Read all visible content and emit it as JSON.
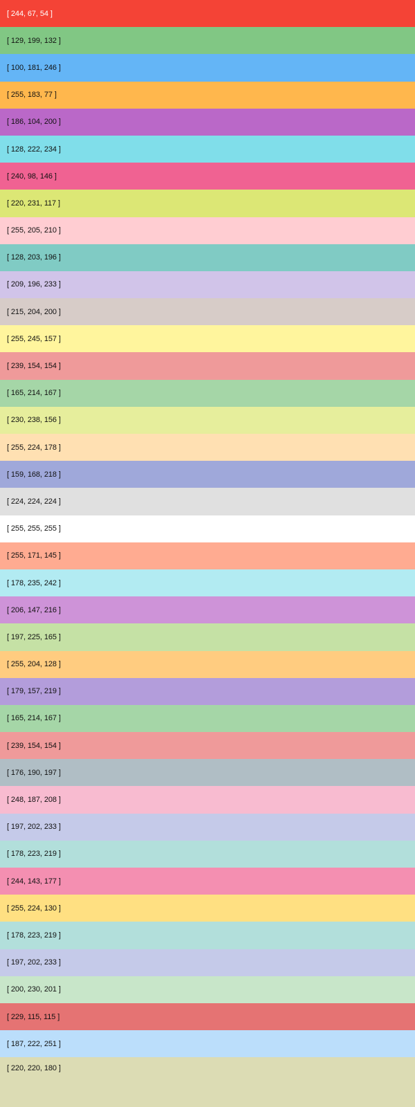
{
  "swatches": [
    {
      "label": "[ 244, 67, 54 ]",
      "rgb": [
        244,
        67,
        54
      ],
      "text_color": "#ffffff"
    },
    {
      "label": "[ 129, 199, 132 ]",
      "rgb": [
        129,
        199,
        132
      ],
      "text_color": "#111111"
    },
    {
      "label": "[ 100, 181, 246 ]",
      "rgb": [
        100,
        181,
        246
      ],
      "text_color": "#111111"
    },
    {
      "label": "[ 255, 183, 77 ]",
      "rgb": [
        255,
        183,
        77
      ],
      "text_color": "#111111"
    },
    {
      "label": "[ 186, 104, 200 ]",
      "rgb": [
        186,
        104,
        200
      ],
      "text_color": "#111111"
    },
    {
      "label": "[ 128, 222, 234 ]",
      "rgb": [
        128,
        222,
        234
      ],
      "text_color": "#111111"
    },
    {
      "label": "[ 240, 98, 146 ]",
      "rgb": [
        240,
        98,
        146
      ],
      "text_color": "#111111"
    },
    {
      "label": "[ 220, 231, 117 ]",
      "rgb": [
        220,
        231,
        117
      ],
      "text_color": "#111111"
    },
    {
      "label": "[ 255, 205, 210 ]",
      "rgb": [
        255,
        205,
        210
      ],
      "text_color": "#111111"
    },
    {
      "label": "[ 128, 203, 196 ]",
      "rgb": [
        128,
        203,
        196
      ],
      "text_color": "#111111"
    },
    {
      "label": "[ 209, 196, 233 ]",
      "rgb": [
        209,
        196,
        233
      ],
      "text_color": "#111111"
    },
    {
      "label": "[ 215, 204, 200 ]",
      "rgb": [
        215,
        204,
        200
      ],
      "text_color": "#111111"
    },
    {
      "label": "[ 255, 245, 157 ]",
      "rgb": [
        255,
        245,
        157
      ],
      "text_color": "#111111"
    },
    {
      "label": "[ 239, 154, 154 ]",
      "rgb": [
        239,
        154,
        154
      ],
      "text_color": "#111111"
    },
    {
      "label": "[ 165, 214, 167 ]",
      "rgb": [
        165,
        214,
        167
      ],
      "text_color": "#111111"
    },
    {
      "label": "[ 230, 238, 156 ]",
      "rgb": [
        230,
        238,
        156
      ],
      "text_color": "#111111"
    },
    {
      "label": "[ 255, 224, 178 ]",
      "rgb": [
        255,
        224,
        178
      ],
      "text_color": "#111111"
    },
    {
      "label": "[ 159, 168, 218 ]",
      "rgb": [
        159,
        168,
        218
      ],
      "text_color": "#111111"
    },
    {
      "label": "[ 224, 224, 224 ]",
      "rgb": [
        224,
        224,
        224
      ],
      "text_color": "#111111"
    },
    {
      "label": "[ 255, 255, 255 ]",
      "rgb": [
        255,
        255,
        255
      ],
      "text_color": "#111111"
    },
    {
      "label": "[ 255, 171, 145 ]",
      "rgb": [
        255,
        171,
        145
      ],
      "text_color": "#111111"
    },
    {
      "label": "[ 178, 235, 242 ]",
      "rgb": [
        178,
        235,
        242
      ],
      "text_color": "#111111"
    },
    {
      "label": "[ 206, 147, 216 ]",
      "rgb": [
        206,
        147,
        216
      ],
      "text_color": "#111111"
    },
    {
      "label": "[ 197, 225, 165 ]",
      "rgb": [
        197,
        225,
        165
      ],
      "text_color": "#111111"
    },
    {
      "label": "[ 255, 204, 128 ]",
      "rgb": [
        255,
        204,
        128
      ],
      "text_color": "#111111"
    },
    {
      "label": "[ 179, 157, 219 ]",
      "rgb": [
        179,
        157,
        219
      ],
      "text_color": "#111111"
    },
    {
      "label": "[ 165, 214, 167 ]",
      "rgb": [
        165,
        214,
        167
      ],
      "text_color": "#111111"
    },
    {
      "label": "[ 239, 154, 154 ]",
      "rgb": [
        239,
        154,
        154
      ],
      "text_color": "#111111"
    },
    {
      "label": "[ 176, 190, 197 ]",
      "rgb": [
        176,
        190,
        197
      ],
      "text_color": "#111111"
    },
    {
      "label": "[ 248, 187, 208 ]",
      "rgb": [
        248,
        187,
        208
      ],
      "text_color": "#111111"
    },
    {
      "label": "[ 197, 202, 233 ]",
      "rgb": [
        197,
        202,
        233
      ],
      "text_color": "#111111"
    },
    {
      "label": "[ 178, 223, 219 ]",
      "rgb": [
        178,
        223,
        219
      ],
      "text_color": "#111111"
    },
    {
      "label": "[ 244, 143, 177 ]",
      "rgb": [
        244,
        143,
        177
      ],
      "text_color": "#111111"
    },
    {
      "label": "[ 255, 224, 130 ]",
      "rgb": [
        255,
        224,
        130
      ],
      "text_color": "#111111"
    },
    {
      "label": "[ 178, 223, 219 ]",
      "rgb": [
        178,
        223,
        219
      ],
      "text_color": "#111111"
    },
    {
      "label": "[ 197, 202, 233 ]",
      "rgb": [
        197,
        202,
        233
      ],
      "text_color": "#111111"
    },
    {
      "label": "[ 200, 230, 201 ]",
      "rgb": [
        200,
        230,
        201
      ],
      "text_color": "#111111"
    },
    {
      "label": "[ 229, 115, 115 ]",
      "rgb": [
        229,
        115,
        115
      ],
      "text_color": "#111111"
    },
    {
      "label": "[ 187, 222, 251 ]",
      "rgb": [
        187,
        222,
        251
      ],
      "text_color": "#111111"
    },
    {
      "label": "[ 220, 220, 180 ]",
      "rgb": [
        220,
        220,
        180
      ],
      "text_color": "#111111"
    }
  ]
}
